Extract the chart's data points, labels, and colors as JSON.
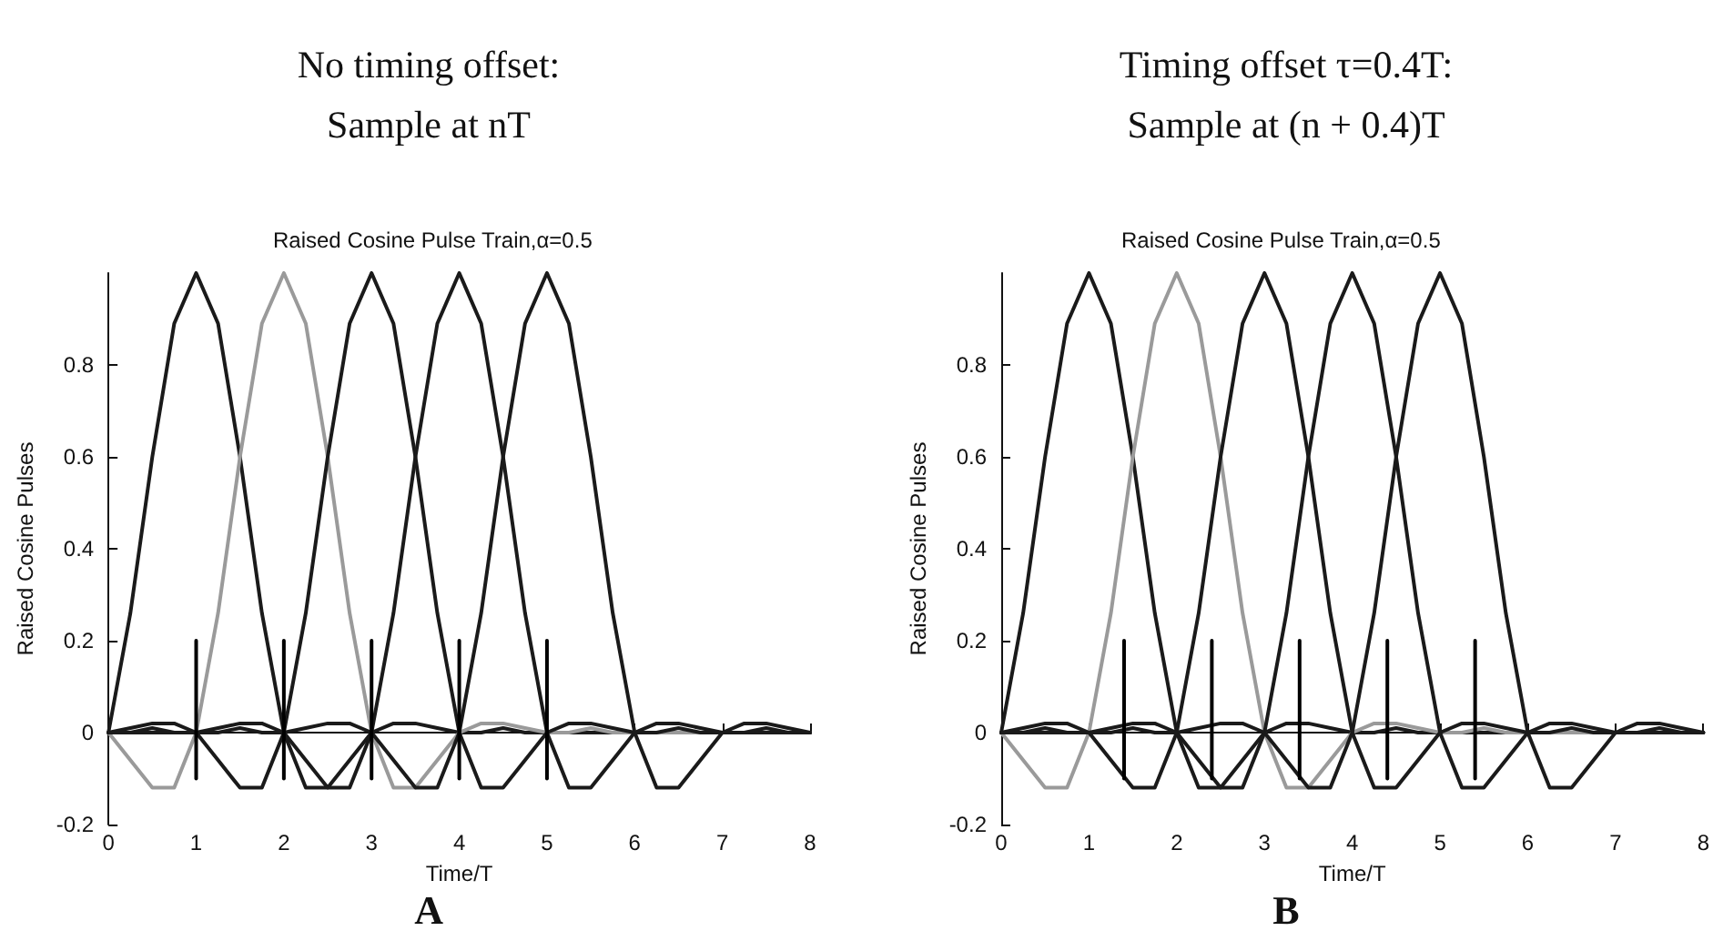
{
  "chart_data": [
    {
      "type": "line",
      "title": "No timing offset:\nSample at nT",
      "subtitle": "Raised Cosine Pulse Train,α=0.5",
      "xlabel": "Time/T",
      "ylabel": "Raised Cosine Pulses",
      "annotations": [
        "A"
      ],
      "x": [
        0,
        0.25,
        0.5,
        0.75,
        1,
        1.25,
        1.5,
        1.75,
        2,
        2.25,
        2.5,
        2.75,
        3,
        3.25,
        3.5,
        3.75,
        4,
        4.25,
        4.5,
        4.75,
        5,
        5.25,
        5.5,
        5.75,
        6,
        6.25,
        6.5,
        6.75,
        7,
        7.25,
        7.5,
        7.75,
        8
      ],
      "xlim": [
        0,
        8
      ],
      "xticks": [
        0,
        1,
        2,
        3,
        4,
        5,
        6,
        7,
        8
      ],
      "ylim": [
        -0.2,
        1
      ],
      "yticks": [
        -0.2,
        0,
        0.2,
        0.4,
        0.6,
        0.8
      ],
      "marker": "none",
      "line_style": "solid",
      "series": [
        {
          "color": "#1a1a1a",
          "values": [
            0,
            0.26,
            0.6,
            0.89,
            1,
            0.89,
            0.6,
            0.26,
            0,
            -0.12,
            -0.12,
            -0.06,
            0,
            0.02,
            0.02,
            0.01,
            0,
            0,
            0.01,
            0,
            0,
            0,
            0,
            0,
            0,
            0,
            0,
            0,
            0,
            0,
            0,
            0,
            0
          ]
        },
        {
          "color": "#9a9a9a",
          "values": [
            0,
            -0.06,
            -0.12,
            -0.12,
            0,
            0.26,
            0.6,
            0.89,
            1,
            0.89,
            0.6,
            0.26,
            0,
            -0.12,
            -0.12,
            -0.06,
            0,
            0.02,
            0.02,
            0.01,
            0,
            0,
            0.01,
            0,
            0,
            0,
            0,
            0,
            0,
            0,
            0,
            0,
            0
          ]
        },
        {
          "color": "#1a1a1a",
          "values": [
            0,
            0.01,
            0.02,
            0.02,
            0,
            -0.06,
            -0.12,
            -0.12,
            0,
            0.26,
            0.6,
            0.89,
            1,
            0.89,
            0.6,
            0.26,
            0,
            -0.12,
            -0.12,
            -0.06,
            0,
            0.02,
            0.02,
            0.01,
            0,
            0,
            0.01,
            0,
            0,
            0,
            0,
            0,
            0
          ]
        },
        {
          "color": "#1a1a1a",
          "values": [
            0,
            0,
            0.01,
            0,
            0,
            0.01,
            0.02,
            0.02,
            0,
            -0.06,
            -0.12,
            -0.12,
            0,
            0.26,
            0.6,
            0.89,
            1,
            0.89,
            0.6,
            0.26,
            0,
            -0.12,
            -0.12,
            -0.06,
            0,
            0.02,
            0.02,
            0.01,
            0,
            0,
            0.01,
            0,
            0
          ]
        },
        {
          "color": "#1a1a1a",
          "values": [
            0,
            0,
            0,
            0,
            0,
            0,
            0.01,
            0,
            0,
            0.01,
            0.02,
            0.02,
            0,
            -0.06,
            -0.12,
            -0.12,
            0,
            0.26,
            0.6,
            0.89,
            1,
            0.89,
            0.6,
            0.26,
            0,
            -0.12,
            -0.12,
            -0.06,
            0,
            0.02,
            0.02,
            0.01,
            0
          ]
        },
        {
          "color": "#000000",
          "x": [
            1,
            1
          ],
          "values": [
            -0.1,
            0.2
          ]
        },
        {
          "color": "#000000",
          "x": [
            2,
            2
          ],
          "values": [
            -0.1,
            0.2
          ]
        },
        {
          "color": "#000000",
          "x": [
            3,
            3
          ],
          "values": [
            -0.1,
            0.2
          ]
        },
        {
          "color": "#000000",
          "x": [
            4,
            4
          ],
          "values": [
            -0.1,
            0.2
          ]
        },
        {
          "color": "#000000",
          "x": [
            5,
            5
          ],
          "values": [
            -0.1,
            0.2
          ]
        }
      ]
    },
    {
      "type": "line",
      "title": "Timing offset τ=0.4T:\nSample at (n + 0.4)T",
      "subtitle": "Raised Cosine Pulse Train,α=0.5",
      "xlabel": "Time/T",
      "ylabel": "Raised Cosine Pulses",
      "annotations": [
        "B"
      ],
      "x": [
        0,
        0.25,
        0.5,
        0.75,
        1,
        1.25,
        1.5,
        1.75,
        2,
        2.25,
        2.5,
        2.75,
        3,
        3.25,
        3.5,
        3.75,
        4,
        4.25,
        4.5,
        4.75,
        5,
        5.25,
        5.5,
        5.75,
        6,
        6.25,
        6.5,
        6.75,
        7,
        7.25,
        7.5,
        7.75,
        8
      ],
      "xlim": [
        0,
        8
      ],
      "xticks": [
        0,
        1,
        2,
        3,
        4,
        5,
        6,
        7,
        8
      ],
      "ylim": [
        -0.2,
        1
      ],
      "yticks": [
        -0.2,
        0,
        0.2,
        0.4,
        0.6,
        0.8
      ],
      "marker": "none",
      "line_style": "solid",
      "series": [
        {
          "color": "#1a1a1a",
          "values": [
            0,
            0.26,
            0.6,
            0.89,
            1,
            0.89,
            0.6,
            0.26,
            0,
            -0.12,
            -0.12,
            -0.06,
            0,
            0.02,
            0.02,
            0.01,
            0,
            0,
            0.01,
            0,
            0,
            0,
            0,
            0,
            0,
            0,
            0,
            0,
            0,
            0,
            0,
            0,
            0
          ]
        },
        {
          "color": "#9a9a9a",
          "values": [
            0,
            -0.06,
            -0.12,
            -0.12,
            0,
            0.26,
            0.6,
            0.89,
            1,
            0.89,
            0.6,
            0.26,
            0,
            -0.12,
            -0.12,
            -0.06,
            0,
            0.02,
            0.02,
            0.01,
            0,
            0,
            0.01,
            0,
            0,
            0,
            0,
            0,
            0,
            0,
            0,
            0,
            0
          ]
        },
        {
          "color": "#1a1a1a",
          "values": [
            0,
            0.01,
            0.02,
            0.02,
            0,
            -0.06,
            -0.12,
            -0.12,
            0,
            0.26,
            0.6,
            0.89,
            1,
            0.89,
            0.6,
            0.26,
            0,
            -0.12,
            -0.12,
            -0.06,
            0,
            0.02,
            0.02,
            0.01,
            0,
            0,
            0.01,
            0,
            0,
            0,
            0,
            0,
            0
          ]
        },
        {
          "color": "#1a1a1a",
          "values": [
            0,
            0,
            0.01,
            0,
            0,
            0.01,
            0.02,
            0.02,
            0,
            -0.06,
            -0.12,
            -0.12,
            0,
            0.26,
            0.6,
            0.89,
            1,
            0.89,
            0.6,
            0.26,
            0,
            -0.12,
            -0.12,
            -0.06,
            0,
            0.02,
            0.02,
            0.01,
            0,
            0,
            0.01,
            0,
            0
          ]
        },
        {
          "color": "#1a1a1a",
          "values": [
            0,
            0,
            0,
            0,
            0,
            0,
            0.01,
            0,
            0,
            0.01,
            0.02,
            0.02,
            0,
            -0.06,
            -0.12,
            -0.12,
            0,
            0.26,
            0.6,
            0.89,
            1,
            0.89,
            0.6,
            0.26,
            0,
            -0.12,
            -0.12,
            -0.06,
            0,
            0.02,
            0.02,
            0.01,
            0
          ]
        },
        {
          "color": "#000000",
          "x": [
            1.4,
            1.4
          ],
          "values": [
            -0.1,
            0.2
          ]
        },
        {
          "color": "#000000",
          "x": [
            2.4,
            2.4
          ],
          "values": [
            -0.1,
            0.2
          ]
        },
        {
          "color": "#000000",
          "x": [
            3.4,
            3.4
          ],
          "values": [
            -0.1,
            0.2
          ]
        },
        {
          "color": "#000000",
          "x": [
            4.4,
            4.4
          ],
          "values": [
            -0.1,
            0.2
          ]
        },
        {
          "color": "#000000",
          "x": [
            5.4,
            5.4
          ],
          "values": [
            -0.1,
            0.2
          ]
        }
      ]
    }
  ]
}
